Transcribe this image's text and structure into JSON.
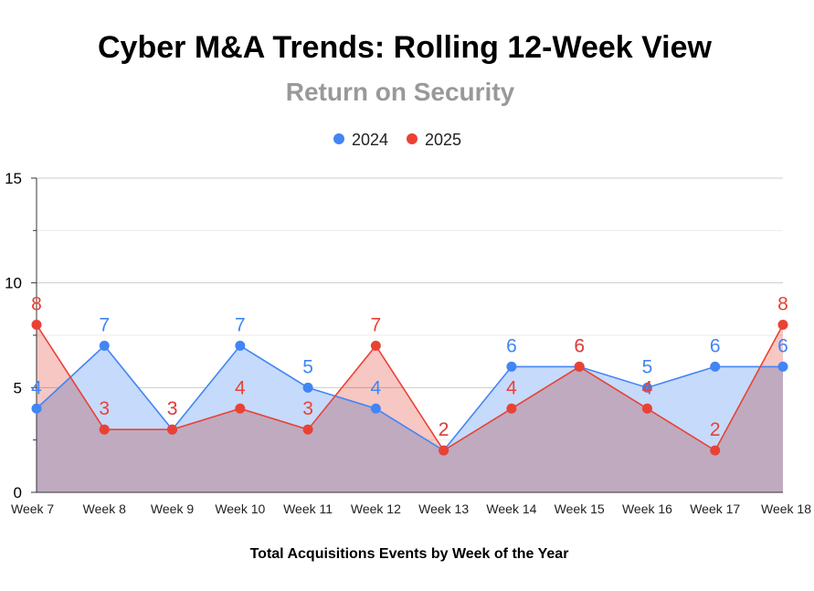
{
  "chart_data": {
    "type": "area",
    "title": "Cyber M&A Trends: Rolling 12-Week View",
    "subtitle": "Return on Security",
    "xlabel": "Total Acquisitions Events by Week of the Year",
    "ylabel": "",
    "ylim": [
      0,
      15
    ],
    "yticks": [
      0,
      5,
      10,
      15
    ],
    "grid": true,
    "legend_position": "top-center",
    "categories": [
      "Week 7",
      "Week 8",
      "Week 9",
      "Week 10",
      "Week 11",
      "Week 12",
      "Week 13",
      "Week 14",
      "Week 15",
      "Week 16",
      "Week 17",
      "Week 18"
    ],
    "series": [
      {
        "name": "2024",
        "color": "#4285f4",
        "fill": "#c6dafc",
        "values": [
          4,
          7,
          3,
          7,
          5,
          4,
          2,
          6,
          6,
          5,
          6,
          6
        ]
      },
      {
        "name": "2025",
        "color": "#e94235",
        "fill": "#f6c7c3",
        "values": [
          8,
          3,
          3,
          4,
          3,
          7,
          2,
          4,
          6,
          4,
          2,
          8
        ]
      }
    ],
    "overlap_color": "#c9a7b6"
  }
}
